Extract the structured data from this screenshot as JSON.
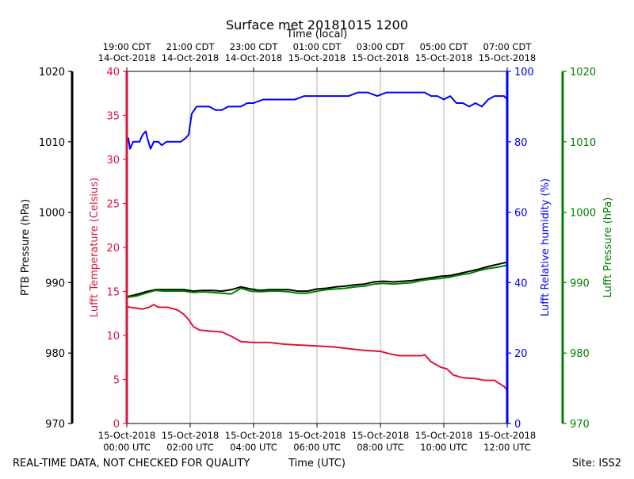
{
  "chart_data": {
    "type": "line",
    "title": "Surface met 20181015 1200",
    "xlabel": "Time (UTC)",
    "x2label": "Time (local)",
    "x_range_hours_utc": [
      0,
      12
    ],
    "x_ticks_bottom": [
      {
        "hour": 0,
        "l1": "15-Oct-2018",
        "l2": "00:00 UTC"
      },
      {
        "hour": 2,
        "l1": "15-Oct-2018",
        "l2": "02:00 UTC"
      },
      {
        "hour": 4,
        "l1": "15-Oct-2018",
        "l2": "04:00 UTC"
      },
      {
        "hour": 6,
        "l1": "15-Oct-2018",
        "l2": "06:00 UTC"
      },
      {
        "hour": 8,
        "l1": "15-Oct-2018",
        "l2": "08:00 UTC"
      },
      {
        "hour": 10,
        "l1": "15-Oct-2018",
        "l2": "10:00 UTC"
      },
      {
        "hour": 12,
        "l1": "15-Oct-2018",
        "l2": "12:00 UTC"
      }
    ],
    "x_ticks_top": [
      {
        "hour": 0,
        "l1": "19:00 CDT",
        "l2": "14-Oct-2018"
      },
      {
        "hour": 2,
        "l1": "21:00 CDT",
        "l2": "14-Oct-2018"
      },
      {
        "hour": 4,
        "l1": "23:00 CDT",
        "l2": "14-Oct-2018"
      },
      {
        "hour": 6,
        "l1": "01:00 CDT",
        "l2": "15-Oct-2018"
      },
      {
        "hour": 8,
        "l1": "03:00 CDT",
        "l2": "15-Oct-2018"
      },
      {
        "hour": 10,
        "l1": "05:00 CDT",
        "l2": "15-Oct-2018"
      },
      {
        "hour": 12,
        "l1": "07:00 CDT",
        "l2": "15-Oct-2018"
      }
    ],
    "axes": {
      "ptb_pressure": {
        "label": "PTB Pressure (hPa)",
        "ylim": [
          970,
          1020
        ],
        "ticks": [
          970,
          980,
          990,
          1000,
          1010,
          1020
        ],
        "color": "#000000"
      },
      "temperature": {
        "label": "Lufft Temperature (Celsius)",
        "ylim": [
          0,
          40
        ],
        "ticks": [
          0,
          5,
          10,
          15,
          20,
          25,
          30,
          35,
          40
        ],
        "color": "#dc143c"
      },
      "humidity": {
        "label": "Lufft Relative humidity (%)",
        "ylim": [
          0,
          100
        ],
        "ticks": [
          0,
          20,
          40,
          60,
          80,
          100
        ],
        "color": "#0000ff"
      },
      "lufft_pressure": {
        "label": "Lufft Pressure (hPa)",
        "ylim": [
          970,
          1020
        ],
        "ticks": [
          970,
          980,
          990,
          1000,
          1010,
          1020
        ],
        "color": "#008000"
      }
    },
    "grid": "vertical",
    "series": [
      {
        "name": "Lufft Temperature",
        "axis": "temperature",
        "color": "#dc143c",
        "x": [
          0,
          0.1,
          0.5,
          0.7,
          0.85,
          1.0,
          1.3,
          1.6,
          1.8,
          1.95,
          2.1,
          2.3,
          2.6,
          3.0,
          3.3,
          3.6,
          4.0,
          4.5,
          5.0,
          5.5,
          6.0,
          6.5,
          7.0,
          7.5,
          8.0,
          8.3,
          8.6,
          9.0,
          9.3,
          9.4,
          9.6,
          9.9,
          10.1,
          10.3,
          10.6,
          11.0,
          11.3,
          11.6,
          11.9,
          12.0
        ],
        "y": [
          13.3,
          13.2,
          13.0,
          13.2,
          13.5,
          13.2,
          13.2,
          12.9,
          12.4,
          11.8,
          11.0,
          10.6,
          10.5,
          10.4,
          9.9,
          9.3,
          9.2,
          9.2,
          9.0,
          8.9,
          8.8,
          8.7,
          8.5,
          8.3,
          8.2,
          7.9,
          7.7,
          7.7,
          7.7,
          7.8,
          7.0,
          6.4,
          6.2,
          5.5,
          5.2,
          5.1,
          4.9,
          4.9,
          4.2,
          3.8
        ]
      },
      {
        "name": "Lufft Relative humidity",
        "axis": "humidity",
        "color": "#0000ff",
        "x": [
          0,
          0.05,
          0.1,
          0.2,
          0.3,
          0.4,
          0.5,
          0.6,
          0.65,
          0.75,
          0.85,
          1.0,
          1.1,
          1.25,
          1.4,
          1.55,
          1.7,
          1.85,
          1.95,
          2.05,
          2.2,
          2.4,
          2.6,
          2.8,
          3.0,
          3.2,
          3.4,
          3.6,
          3.8,
          4.0,
          4.3,
          4.6,
          5.0,
          5.3,
          5.6,
          5.9,
          6.3,
          6.6,
          7.0,
          7.3,
          7.6,
          7.9,
          8.2,
          8.5,
          8.8,
          9.1,
          9.4,
          9.6,
          9.8,
          10.0,
          10.2,
          10.4,
          10.6,
          10.8,
          11.0,
          11.2,
          11.4,
          11.6,
          11.8,
          11.9,
          12.0
        ],
        "y": [
          79,
          81,
          78,
          80,
          80,
          80,
          82,
          83,
          81,
          78,
          80,
          80,
          79,
          80,
          80,
          80,
          80,
          81,
          82,
          88,
          90,
          90,
          90,
          89,
          89,
          90,
          90,
          90,
          91,
          91,
          92,
          92,
          92,
          92,
          93,
          93,
          93,
          93,
          93,
          94,
          94,
          93,
          94,
          94,
          94,
          94,
          94,
          93,
          93,
          92,
          93,
          91,
          91,
          90,
          91,
          90,
          92,
          93,
          93,
          93,
          92
        ]
      },
      {
        "name": "PTB Pressure",
        "axis": "ptb_pressure",
        "color": "#000000",
        "x": [
          0,
          0.3,
          0.6,
          0.9,
          1.2,
          1.5,
          1.8,
          2.1,
          2.4,
          2.7,
          3.0,
          3.3,
          3.6,
          3.9,
          4.2,
          4.5,
          4.8,
          5.1,
          5.4,
          5.7,
          6.0,
          6.3,
          6.6,
          6.9,
          7.2,
          7.5,
          7.8,
          8.1,
          8.4,
          8.7,
          9.0,
          9.3,
          9.6,
          9.9,
          10.2,
          10.5,
          10.8,
          11.1,
          11.4,
          11.7,
          12.0
        ],
        "y": [
          988.0,
          988.3,
          988.7,
          989.0,
          989.0,
          989.0,
          989.0,
          988.8,
          988.9,
          988.9,
          988.8,
          989.0,
          989.4,
          989.1,
          988.9,
          989.0,
          989.0,
          989.0,
          988.8,
          988.8,
          989.1,
          989.2,
          989.4,
          989.5,
          989.7,
          989.8,
          990.1,
          990.2,
          990.1,
          990.2,
          990.3,
          990.5,
          990.7,
          990.9,
          991.0,
          991.3,
          991.6,
          991.9,
          992.3,
          992.6,
          992.9
        ]
      },
      {
        "name": "Lufft Pressure",
        "axis": "lufft_pressure",
        "color": "#008000",
        "x": [
          0,
          0.3,
          0.6,
          0.9,
          1.2,
          1.5,
          1.8,
          2.1,
          2.4,
          2.7,
          3.0,
          3.3,
          3.6,
          3.9,
          4.2,
          4.5,
          4.8,
          5.1,
          5.4,
          5.7,
          6.0,
          6.3,
          6.6,
          6.9,
          7.2,
          7.5,
          7.8,
          8.1,
          8.4,
          8.7,
          9.0,
          9.3,
          9.6,
          9.9,
          10.2,
          10.5,
          10.8,
          11.1,
          11.4,
          11.7,
          12.0
        ],
        "y": [
          987.9,
          988.1,
          988.5,
          988.9,
          988.8,
          988.8,
          988.8,
          988.6,
          988.7,
          988.6,
          988.5,
          988.4,
          989.2,
          988.8,
          988.7,
          988.8,
          988.8,
          988.7,
          988.5,
          988.5,
          988.8,
          989.0,
          989.1,
          989.2,
          989.4,
          989.5,
          989.8,
          989.9,
          989.8,
          989.9,
          990.0,
          990.3,
          990.5,
          990.6,
          990.8,
          991.1,
          991.3,
          991.7,
          992.0,
          992.2,
          992.5
        ]
      }
    ]
  },
  "footer": {
    "left": "REAL-TIME DATA, NOT CHECKED FOR QUALITY",
    "right": "Site: ISS2"
  }
}
